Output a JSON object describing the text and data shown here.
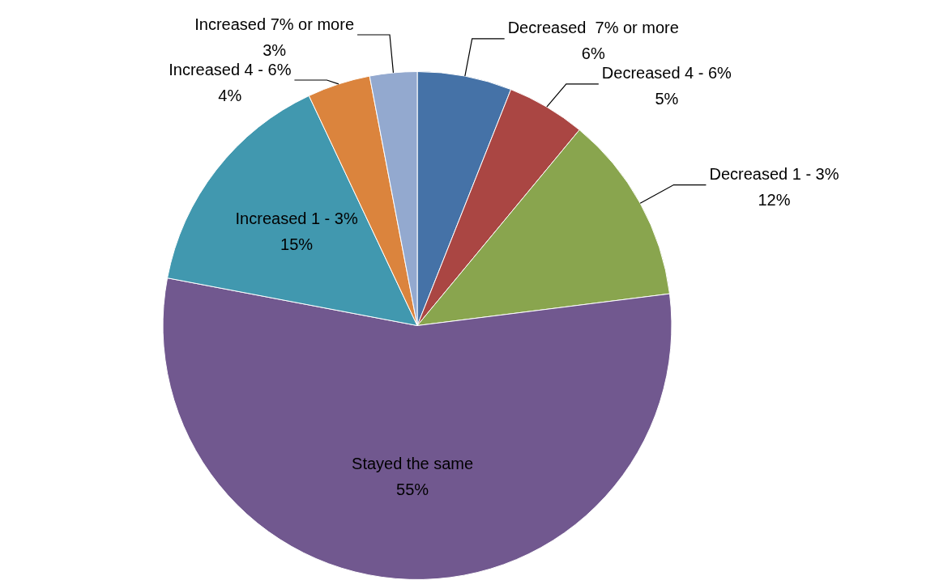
{
  "chart_data": {
    "type": "pie",
    "categories": [
      "Decreased  7% or more",
      "Decreased 4 - 6%",
      "Decreased 1 - 3%",
      "Stayed the same",
      "Increased 1 - 3%",
      "Increased 4 - 6%",
      "Increased 7% or more"
    ],
    "values": [
      6,
      5,
      12,
      55,
      15,
      4,
      3
    ],
    "colors": [
      "#4572a7",
      "#aa4643",
      "#89a54e",
      "#71588f",
      "#4198af",
      "#db843d",
      "#93a9cf"
    ],
    "value_labels": [
      "6%",
      "5%",
      "12%",
      "55%",
      "15%",
      "4%",
      "3%"
    ]
  }
}
